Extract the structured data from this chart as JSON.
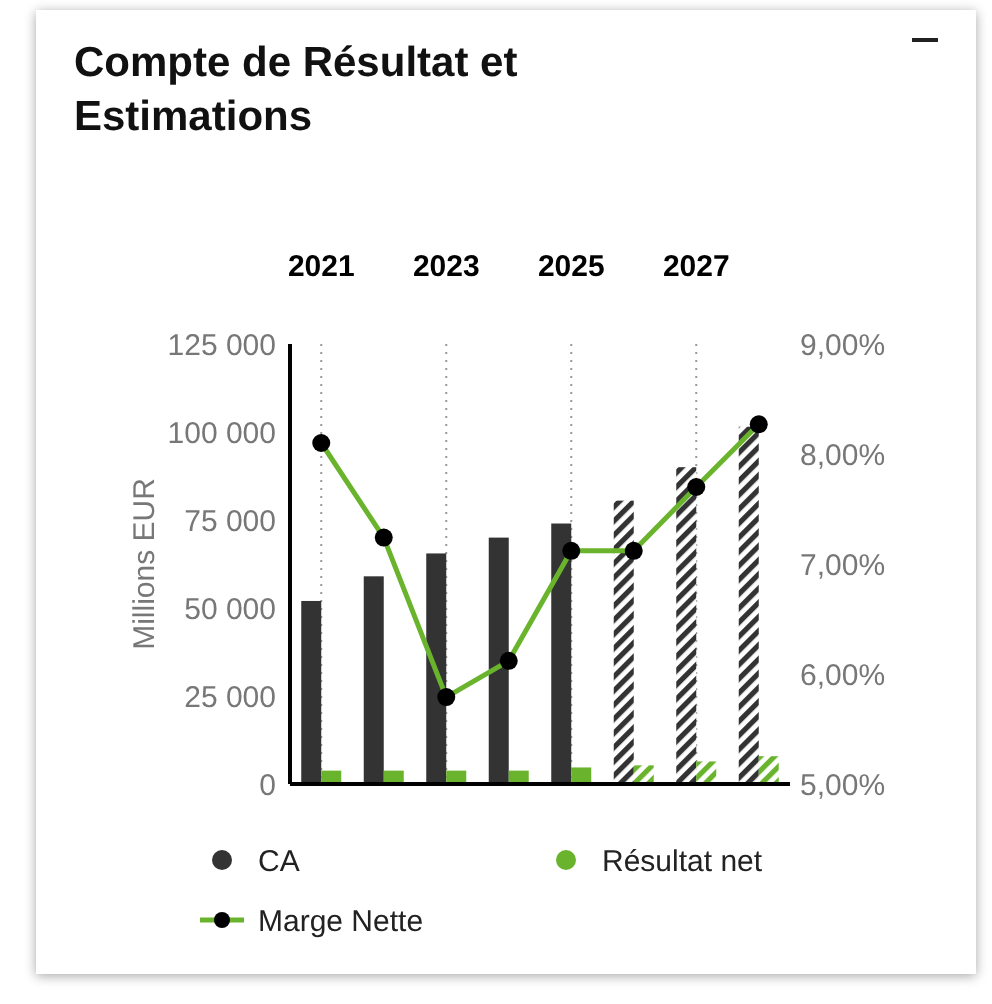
{
  "chart_data": {
    "type": "bar",
    "title": "Compte de Résultat et Estimations",
    "ylabel": "Millions EUR",
    "categories": [
      "2021",
      null,
      "2023",
      null,
      "2025",
      null,
      "2027",
      null
    ],
    "series": [
      {
        "name": "CA",
        "color": "#333333",
        "values": [
          52000,
          59000,
          65500,
          70000,
          74000,
          null,
          null,
          null
        ]
      },
      {
        "name": "Résultat net",
        "color": "#6ab42d",
        "values": [
          3800,
          3800,
          3800,
          3800,
          4700,
          null,
          null,
          null
        ]
      },
      {
        "color": "#333333",
        "values": [
          null,
          null,
          null,
          null,
          null,
          80500,
          90000,
          101500
        ]
      },
      {
        "color": "#6ab42d",
        "values": [
          null,
          null,
          null,
          null,
          null,
          5300,
          6400,
          7900
        ]
      },
      {
        "name": "Marge Nette",
        "type": "line",
        "axis": "y2",
        "color": "#6ab42d",
        "marker": "circle",
        "values": [
          8.1,
          7.24,
          5.79,
          6.12,
          7.12,
          7.12,
          7.7,
          8.27
        ]
      }
    ],
    "ylim": [
      0,
      125000
    ],
    "yticks": [
      {
        "value": 0,
        "label": "0"
      },
      {
        "value": 25000,
        "label": "25 000"
      },
      {
        "value": 50000,
        "label": "50 000"
      },
      {
        "value": 75000,
        "label": "75 000"
      },
      {
        "value": 100000,
        "label": "100 000"
      },
      {
        "value": 125000,
        "label": "125 000"
      }
    ],
    "y2lim": [
      5,
      9
    ],
    "y2ticks": [
      {
        "value": 5,
        "label": "5,00%"
      },
      {
        "value": 6,
        "label": "6,00%"
      },
      {
        "value": 7,
        "label": "7,00%"
      },
      {
        "value": 8,
        "label": "8,00%"
      },
      {
        "value": 9,
        "label": "9,00%"
      }
    ],
    "grid": "x",
    "legend": "bottom"
  }
}
